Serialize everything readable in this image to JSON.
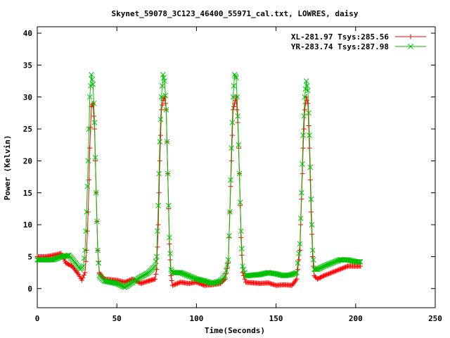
{
  "chart_data": {
    "type": "line",
    "title": "Skynet_59078_3C123_46400_55971_cal.txt, LOWRES, daisy",
    "xlabel": "Time(Seconds)",
    "ylabel": "Power (Kelvin)",
    "xlim": [
      0,
      250
    ],
    "ylim": [
      -3,
      41
    ],
    "xticks": [
      0,
      50,
      100,
      150,
      200,
      250
    ],
    "yticks": [
      0,
      5,
      10,
      15,
      20,
      25,
      30,
      35,
      40
    ],
    "grid": false,
    "legend_position": "top-right",
    "series": [
      {
        "name": "XL-281.97 Tsys:285.56",
        "color": "#ff0000",
        "marker": "plus",
        "points": [
          [
            0,
            5.0
          ],
          [
            5,
            5.0
          ],
          [
            10,
            5.2
          ],
          [
            15,
            5.5
          ],
          [
            18,
            4.0
          ],
          [
            22,
            3.5
          ],
          [
            26,
            2.2
          ],
          [
            28,
            1.3
          ],
          [
            30,
            2.5
          ],
          [
            31,
            6.0
          ],
          [
            32,
            12.0
          ],
          [
            33,
            22.0
          ],
          [
            34,
            28.5
          ],
          [
            35,
            29.0
          ],
          [
            36,
            25.0
          ],
          [
            37,
            15.0
          ],
          [
            38,
            6.0
          ],
          [
            39,
            2.5
          ],
          [
            42,
            1.5
          ],
          [
            50,
            1.3
          ],
          [
            55,
            1.0
          ],
          [
            60,
            1.5
          ],
          [
            65,
            0.8
          ],
          [
            70,
            1.2
          ],
          [
            74,
            1.5
          ],
          [
            75,
            3.0
          ],
          [
            76,
            10.0
          ],
          [
            77,
            20.0
          ],
          [
            78,
            28.0
          ],
          [
            79,
            29.5
          ],
          [
            80,
            30.0
          ],
          [
            81,
            28.0
          ],
          [
            82,
            18.0
          ],
          [
            83,
            7.0
          ],
          [
            84,
            2.0
          ],
          [
            85,
            0.5
          ],
          [
            90,
            1.0
          ],
          [
            95,
            0.8
          ],
          [
            100,
            1.0
          ],
          [
            105,
            0.5
          ],
          [
            110,
            0.6
          ],
          [
            115,
            0.8
          ],
          [
            118,
            1.5
          ],
          [
            120,
            4.0
          ],
          [
            121,
            12.0
          ],
          [
            122,
            20.0
          ],
          [
            123,
            28.0
          ],
          [
            124,
            29.0
          ],
          [
            125,
            30.0
          ],
          [
            126,
            26.0
          ],
          [
            127,
            18.0
          ],
          [
            128,
            8.0
          ],
          [
            129,
            2.5
          ],
          [
            131,
            1.0
          ],
          [
            140,
            0.8
          ],
          [
            145,
            0.9
          ],
          [
            150,
            0.5
          ],
          [
            155,
            0.6
          ],
          [
            160,
            0.5
          ],
          [
            163,
            1.5
          ],
          [
            165,
            6.0
          ],
          [
            166,
            14.0
          ],
          [
            167,
            22.0
          ],
          [
            168,
            28.0
          ],
          [
            169,
            30.0
          ],
          [
            170,
            29.0
          ],
          [
            171,
            22.0
          ],
          [
            172,
            12.0
          ],
          [
            173,
            5.0
          ],
          [
            174,
            2.0
          ],
          [
            176,
            1.5
          ],
          [
            180,
            2.0
          ],
          [
            185,
            2.5
          ],
          [
            190,
            3.0
          ],
          [
            195,
            3.5
          ],
          [
            200,
            3.5
          ],
          [
            203,
            3.5
          ]
        ]
      },
      {
        "name": "YR-283.74 Tsys:287.98",
        "color": "#00c000",
        "marker": "x",
        "points": [
          [
            0,
            4.5
          ],
          [
            5,
            4.5
          ],
          [
            10,
            4.5
          ],
          [
            15,
            5.0
          ],
          [
            20,
            5.2
          ],
          [
            24,
            4.0
          ],
          [
            27,
            3.0
          ],
          [
            29,
            3.5
          ],
          [
            30,
            6.0
          ],
          [
            31,
            12.0
          ],
          [
            32,
            20.0
          ],
          [
            33,
            30.0
          ],
          [
            34,
            33.5
          ],
          [
            35,
            32.0
          ],
          [
            36,
            26.0
          ],
          [
            37,
            15.0
          ],
          [
            38,
            6.0
          ],
          [
            39,
            2.0
          ],
          [
            42,
            1.2
          ],
          [
            50,
            0.8
          ],
          [
            55,
            0.2
          ],
          [
            60,
            1.0
          ],
          [
            65,
            1.8
          ],
          [
            70,
            2.5
          ],
          [
            74,
            3.5
          ],
          [
            75,
            5.0
          ],
          [
            76,
            13.0
          ],
          [
            77,
            23.0
          ],
          [
            78,
            30.0
          ],
          [
            79,
            33.5
          ],
          [
            80,
            32.5
          ],
          [
            81,
            28.0
          ],
          [
            82,
            18.0
          ],
          [
            83,
            8.0
          ],
          [
            84,
            3.0
          ],
          [
            85,
            2.5
          ],
          [
            90,
            2.5
          ],
          [
            95,
            2.0
          ],
          [
            100,
            1.5
          ],
          [
            105,
            1.2
          ],
          [
            110,
            0.8
          ],
          [
            115,
            1.2
          ],
          [
            118,
            2.0
          ],
          [
            120,
            4.5
          ],
          [
            121,
            12.0
          ],
          [
            122,
            22.0
          ],
          [
            123,
            30.0
          ],
          [
            124,
            33.5
          ],
          [
            125,
            33.0
          ],
          [
            126,
            27.0
          ],
          [
            127,
            18.0
          ],
          [
            128,
            9.0
          ],
          [
            129,
            3.5
          ],
          [
            131,
            2.0
          ],
          [
            140,
            2.2
          ],
          [
            145,
            2.5
          ],
          [
            150,
            2.3
          ],
          [
            155,
            2.0
          ],
          [
            160,
            2.2
          ],
          [
            163,
            2.5
          ],
          [
            165,
            7.0
          ],
          [
            166,
            15.0
          ],
          [
            167,
            24.0
          ],
          [
            168,
            30.0
          ],
          [
            169,
            32.5
          ],
          [
            170,
            31.0
          ],
          [
            171,
            24.0
          ],
          [
            172,
            14.0
          ],
          [
            173,
            6.0
          ],
          [
            174,
            3.0
          ],
          [
            176,
            3.0
          ],
          [
            180,
            3.5
          ],
          [
            185,
            4.0
          ],
          [
            190,
            4.5
          ],
          [
            195,
            4.5
          ],
          [
            200,
            4.2
          ],
          [
            203,
            4.2
          ]
        ]
      }
    ]
  }
}
